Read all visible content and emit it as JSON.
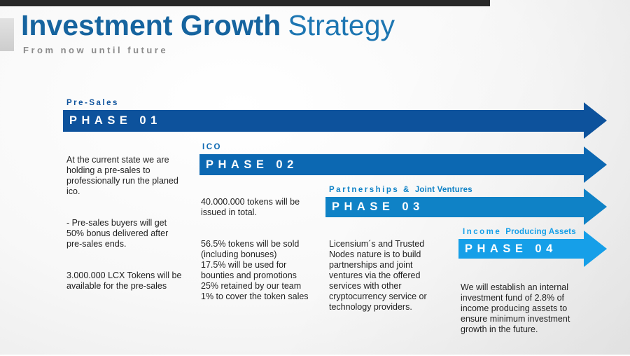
{
  "slide": {
    "title_bold": "Investment Growth",
    "title_light": "Strategy",
    "subtitle": "From now until future",
    "title_bold_color": "#16649f",
    "title_light_color": "#1d76b2",
    "subtitle_color": "#8b8b8b",
    "topbar_color": "#282828",
    "background_color": "#f2f2f2"
  },
  "phases": [
    {
      "label_spaced": "Pre-Sales",
      "label_rest": "",
      "name": "PHASE 01",
      "color": "#0d529c",
      "paragraphs": [
        "At the current state we are\nholding a pre-sales to\nprofessionally run the planed\nico.",
        "- Pre-sales buyers will get\n50% bonus delivered after\npre-sales ends.",
        "3.000.000 LCX Tokens will be\navailable for the pre-sales"
      ]
    },
    {
      "label_spaced": "ICO",
      "label_rest": "",
      "name": "PHASE 02",
      "color": "#0c68b2",
      "paragraphs": [
        "40.000.000 tokens will be\nissued in total.",
        "56.5% tokens will be sold\n(including bonuses)\n17.5% will be used for\nbounties and promotions\n25% retained by our team\n1% to cover the token sales"
      ]
    },
    {
      "label_spaced": "Partnerships &",
      "label_rest": "Joint Ventures",
      "name": "PHASE 03",
      "color": "#0f82c6",
      "paragraphs": [
        "Licensium´s and Trusted\nNodes nature is to build\npartnerships and joint\nventures via the offered\nservices with other\ncryptocurrency service or\ntechnology providers."
      ]
    },
    {
      "label_spaced": "Income",
      "label_rest": "Producing Assets",
      "name": "PHASE 04",
      "color": "#169fe8",
      "paragraphs": [
        "We will establish an internal\ninvestment fund of 2.8% of\nincome producing assets to\nensure minimum investment\ngrowth in the future."
      ]
    }
  ]
}
